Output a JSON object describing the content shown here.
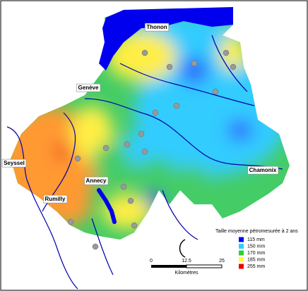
{
  "map": {
    "cities": [
      {
        "label": "Thonon"
      },
      {
        "label": "Genève"
      },
      {
        "label": "Seyssel"
      },
      {
        "label": "Rumilly"
      },
      {
        "label": "Annecy"
      },
      {
        "label": "Chamonix"
      }
    ],
    "legend": {
      "title": "Taille moyenne pétromesurée à 2 ans",
      "items": [
        {
          "label": "115 mm",
          "color": "#0000ff"
        },
        {
          "label": "150 mm",
          "color": "#33ccff"
        },
        {
          "label": "170 mm",
          "color": "#33cc33"
        },
        {
          "label": "185 mm",
          "color": "#ffff33"
        },
        {
          "label": "255 mm",
          "color": "#ee0000"
        }
      ]
    },
    "scale": {
      "ticks": [
        "0",
        "12.5",
        "25"
      ],
      "unit": "Kilomètres"
    }
  }
}
